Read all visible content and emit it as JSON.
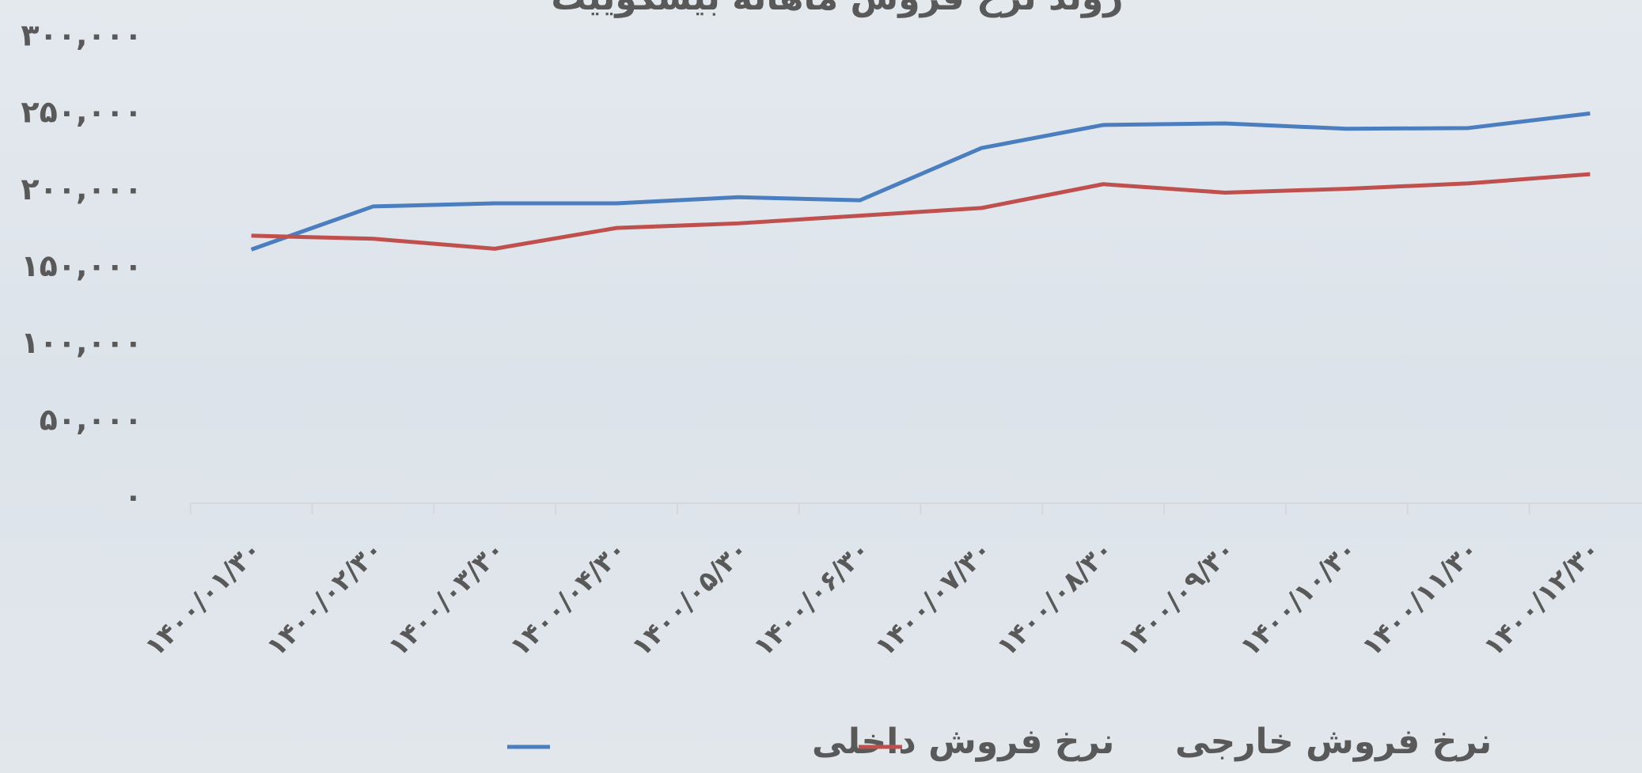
{
  "chart_data": {
    "type": "line",
    "title": "روند نرخ فروش ماهانه بیسکوییت",
    "categories": [
      "۱۴۰۰/۰۱/۳۰",
      "۱۴۰۰/۰۲/۳۰",
      "۱۴۰۰/۰۳/۳۰",
      "۱۴۰۰/۰۴/۳۰",
      "۱۴۰۰/۰۵/۳۰",
      "۱۴۰۰/۰۶/۳۰",
      "۱۴۰۰/۰۷/۳۰",
      "۱۴۰۰/۰۸/۳۰",
      "۱۴۰۰/۰۹/۳۰",
      "۱۴۰۰/۱۰/۳۰",
      "۱۴۰۰/۱۱/۳۰",
      "۱۴۰۰/۱۲/۳۰"
    ],
    "series": [
      {
        "name": "نرخ فروش داخلی",
        "color": "#4a7ebf",
        "values": [
          165000,
          193000,
          195000,
          195000,
          199000,
          197000,
          231000,
          246000,
          247000,
          243500,
          244000,
          253500
        ]
      },
      {
        "name": "نرخ فروش خارجی",
        "color": "#c0504d",
        "values": [
          174000,
          172000,
          165500,
          179000,
          182000,
          187000,
          192000,
          207500,
          202000,
          204500,
          208000,
          214000
        ]
      }
    ],
    "ylim": [
      0,
      300000
    ],
    "yticks": [
      {
        "value": 0,
        "label": "۰"
      },
      {
        "value": 50000,
        "label": "۵۰,۰۰۰"
      },
      {
        "value": 100000,
        "label": "۱۰۰,۰۰۰"
      },
      {
        "value": 150000,
        "label": "۱۵۰,۰۰۰"
      },
      {
        "value": 200000,
        "label": "۲۰۰,۰۰۰"
      },
      {
        "value": 250000,
        "label": "۲۵۰,۰۰۰"
      },
      {
        "value": 300000,
        "label": "۳۰۰,۰۰۰"
      }
    ],
    "grid": false,
    "legend": "bottom"
  }
}
